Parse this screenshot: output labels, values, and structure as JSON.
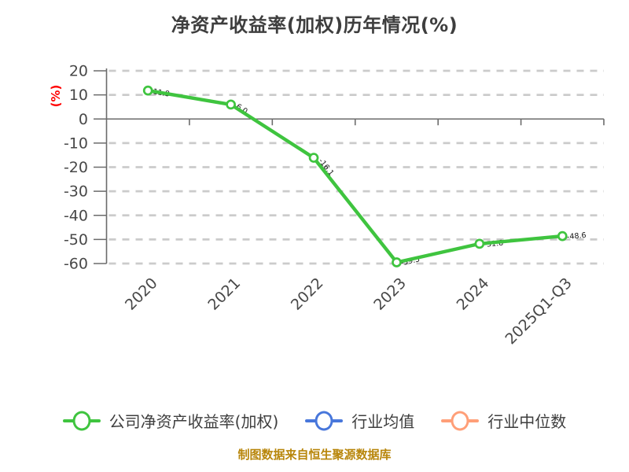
{
  "chart": {
    "title": "净资产收益率(加权)历年情况(%)",
    "colors": {
      "title_text": "#3e3e3e",
      "tick_text": "#484848",
      "axis_line": "#6b6b6b",
      "gridline": "#cbcbcb",
      "series_green": "#3fc43f",
      "industry_blue": "#4877db",
      "industry_orange": "#ff9f78",
      "ylabel_red": "#ff0000",
      "footer_gold": "#b8860b",
      "point_label": "#151515",
      "marker_fill": "#ffffff"
    }
  },
  "chart_data": {
    "type": "line",
    "title": "净资产收益率(加权)历年情况(%)",
    "xlabel": "",
    "ylabel": "(%)",
    "categories": [
      "2020",
      "2021",
      "2022",
      "2023",
      "2024",
      "2025Q1-Q3"
    ],
    "series": [
      {
        "name": "公司净资产收益率(加权)",
        "color": "#3fc43f",
        "values": [
          11.8,
          6.0,
          -16.1,
          -59.5,
          -51.8,
          -48.6
        ]
      },
      {
        "name": "行业均值",
        "color": "#4877db",
        "values": []
      },
      {
        "name": "行业中位数",
        "color": "#ff9f78",
        "values": []
      }
    ],
    "ylim": [
      -60,
      20
    ],
    "yticks": [
      20,
      10,
      0,
      -10,
      -20,
      -30,
      -40,
      -50,
      -60
    ],
    "grid": "horizontal-dashed",
    "x_tick_rotation": 45,
    "legend_position": "bottom",
    "point_labels_visible": true
  },
  "legend": {
    "items": [
      {
        "label": "公司净资产收益率(加权)",
        "color": "#3fc43f"
      },
      {
        "label": "行业均值",
        "color": "#4877db"
      },
      {
        "label": "行业中位数",
        "color": "#ff9f78"
      }
    ]
  },
  "footer": {
    "text": "制图数据来自恒生聚源数据库"
  }
}
